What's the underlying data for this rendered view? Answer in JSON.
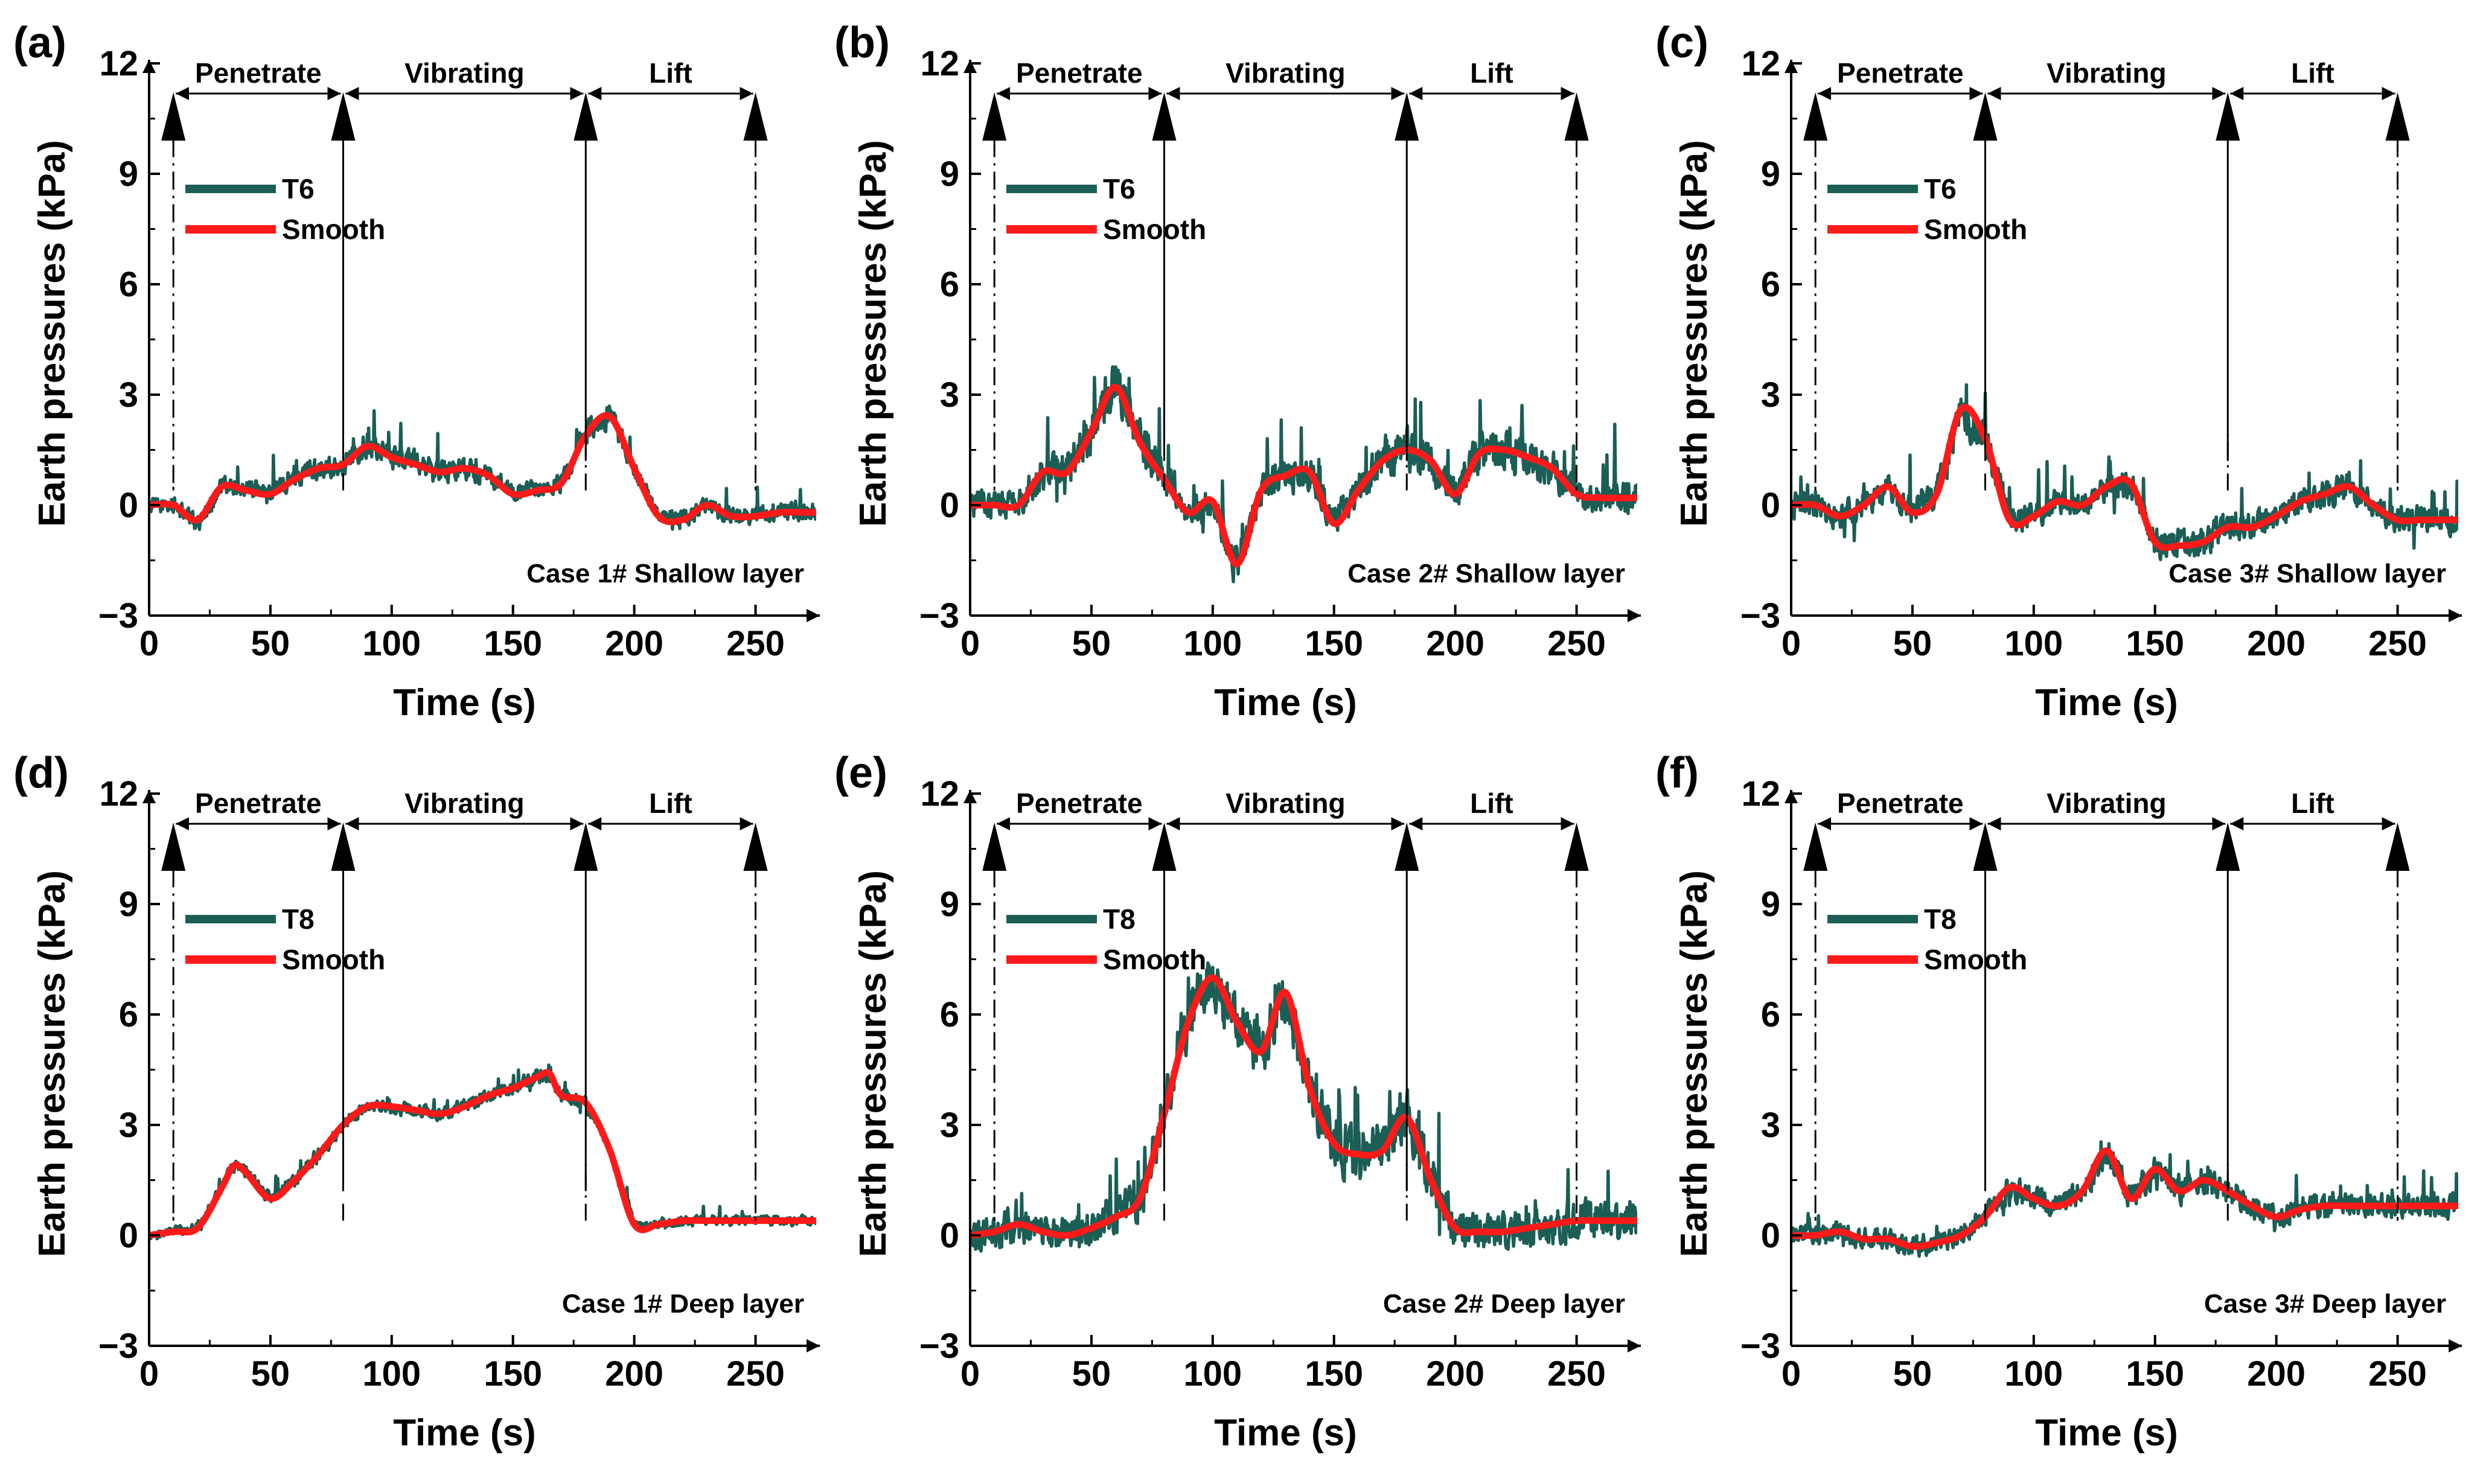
{
  "figure": {
    "colors": {
      "raw": "#1b5e55",
      "smooth": "#ff1a1a",
      "axis": "#000000"
    }
  },
  "chart_data": [
    {
      "panel": "(a)",
      "type": "line",
      "xlabel": "Time (s)",
      "ylabel": "Earth pressures (kPa)",
      "xlim": [
        0,
        275
      ],
      "ylim": [
        -3,
        12
      ],
      "xticks": [
        "0",
        "50",
        "100",
        "150",
        "200",
        "250"
      ],
      "yticks": [
        "−3",
        "0",
        "3",
        "6",
        "9",
        "12"
      ],
      "phases": [
        "Penetrate",
        "Vibrating",
        "Lift"
      ],
      "phase_boundaries": [
        10,
        80,
        180,
        250
      ],
      "annotation": "Case 1# Shallow layer",
      "series": [
        {
          "name": "T6",
          "role": "raw",
          "noise": 0.55,
          "x": [
            0,
            10,
            20,
            30,
            40,
            50,
            60,
            70,
            80,
            90,
            100,
            110,
            120,
            130,
            140,
            150,
            160,
            170,
            180,
            190,
            200,
            210,
            220,
            230,
            240,
            250,
            260,
            275
          ],
          "values": [
            0,
            0,
            -0.5,
            0.5,
            0.5,
            0.3,
            0.8,
            1.0,
            1.1,
            1.7,
            1.3,
            1.2,
            0.9,
            1.0,
            0.8,
            0.3,
            0.4,
            0.6,
            2.0,
            2.4,
            1.0,
            -0.3,
            -0.4,
            0.0,
            -0.3,
            -0.3,
            -0.2,
            -0.2
          ]
        },
        {
          "name": "Smooth",
          "role": "smooth",
          "noise": 0,
          "x": [
            0,
            10,
            20,
            30,
            40,
            50,
            60,
            70,
            80,
            90,
            100,
            110,
            120,
            130,
            140,
            150,
            160,
            170,
            180,
            190,
            200,
            210,
            220,
            230,
            240,
            250,
            260,
            275
          ],
          "values": [
            0,
            0,
            -0.4,
            0.5,
            0.4,
            0.3,
            0.7,
            1.0,
            1.1,
            1.6,
            1.3,
            1.1,
            0.9,
            1.0,
            0.8,
            0.3,
            0.4,
            0.6,
            1.9,
            2.4,
            1.0,
            -0.3,
            -0.4,
            0.0,
            -0.3,
            -0.3,
            -0.2,
            -0.2
          ]
        }
      ]
    },
    {
      "panel": "(b)",
      "type": "line",
      "xlabel": "Time (s)",
      "ylabel": "Earth pressures (kPa)",
      "xlim": [
        0,
        275
      ],
      "ylim": [
        -3,
        12
      ],
      "xticks": [
        "0",
        "50",
        "100",
        "150",
        "200",
        "250"
      ],
      "yticks": [
        "−3",
        "0",
        "3",
        "6",
        "9",
        "12"
      ],
      "phases": [
        "Penetrate",
        "Vibrating",
        "Lift"
      ],
      "phase_boundaries": [
        10,
        80,
        180,
        250
      ],
      "annotation": "Case 2# Shallow layer",
      "series": [
        {
          "name": "T6",
          "role": "raw",
          "noise": 1.0,
          "x": [
            0,
            10,
            20,
            30,
            40,
            50,
            60,
            70,
            80,
            90,
            100,
            110,
            120,
            130,
            140,
            150,
            160,
            170,
            180,
            190,
            200,
            210,
            220,
            230,
            240,
            250,
            260,
            275
          ],
          "values": [
            0,
            0,
            0,
            0.9,
            1.0,
            2.0,
            3.4,
            1.7,
            0.8,
            -0.2,
            0.1,
            -1.7,
            0.4,
            0.8,
            0.9,
            -0.5,
            0.4,
            1.2,
            1.5,
            1.2,
            0.3,
            1.4,
            1.6,
            1.3,
            1.0,
            0.3,
            0.2,
            0.2
          ]
        },
        {
          "name": "Smooth",
          "role": "smooth",
          "noise": 0,
          "x": [
            0,
            10,
            20,
            30,
            40,
            50,
            60,
            70,
            80,
            90,
            100,
            110,
            120,
            130,
            140,
            150,
            160,
            170,
            180,
            190,
            200,
            210,
            220,
            230,
            240,
            250,
            260,
            275
          ],
          "values": [
            0,
            0,
            0,
            0.9,
            0.9,
            2.0,
            3.2,
            1.7,
            0.7,
            -0.2,
            0.1,
            -1.6,
            0.4,
            0.8,
            0.9,
            -0.5,
            0.4,
            1.2,
            1.5,
            1.2,
            0.3,
            1.4,
            1.5,
            1.3,
            1.0,
            0.3,
            0.2,
            0.2
          ]
        }
      ]
    },
    {
      "panel": "(c)",
      "type": "line",
      "xlabel": "Time (s)",
      "ylabel": "Earth pressures (kPa)",
      "xlim": [
        0,
        275
      ],
      "ylim": [
        -3,
        12
      ],
      "xticks": [
        "0",
        "50",
        "100",
        "150",
        "200",
        "250"
      ],
      "yticks": [
        "−3",
        "0",
        "3",
        "6",
        "9",
        "12"
      ],
      "phases": [
        "Penetrate",
        "Vibrating",
        "Lift"
      ],
      "phase_boundaries": [
        10,
        80,
        180,
        250
      ],
      "annotation": "Case 3# Shallow layer",
      "series": [
        {
          "name": "T6",
          "role": "raw",
          "noise": 0.85,
          "x": [
            0,
            10,
            20,
            30,
            40,
            50,
            60,
            70,
            80,
            90,
            100,
            110,
            120,
            130,
            140,
            150,
            160,
            170,
            180,
            190,
            200,
            210,
            220,
            230,
            240,
            250,
            260,
            275
          ],
          "values": [
            0,
            0,
            -0.3,
            0.0,
            0.5,
            -0.2,
            0.3,
            2.5,
            1.8,
            -0.4,
            -0.3,
            0.1,
            0.0,
            0.5,
            0.6,
            -1.0,
            -1.1,
            -1.0,
            -0.6,
            -0.6,
            -0.3,
            0.1,
            0.3,
            0.5,
            0.0,
            -0.4,
            -0.4,
            -0.4
          ]
        },
        {
          "name": "Smooth",
          "role": "smooth",
          "noise": 0,
          "x": [
            0,
            10,
            20,
            30,
            40,
            50,
            60,
            70,
            80,
            90,
            100,
            110,
            120,
            130,
            140,
            150,
            160,
            170,
            180,
            190,
            200,
            210,
            220,
            230,
            240,
            250,
            260,
            275
          ],
          "values": [
            0,
            0,
            -0.3,
            0.0,
            0.5,
            -0.2,
            0.3,
            2.6,
            1.8,
            -0.4,
            -0.3,
            0.1,
            0.0,
            0.5,
            0.6,
            -1.0,
            -1.1,
            -1.0,
            -0.6,
            -0.6,
            -0.3,
            0.1,
            0.3,
            0.5,
            0.0,
            -0.4,
            -0.4,
            -0.4
          ]
        }
      ]
    },
    {
      "panel": "(d)",
      "type": "line",
      "xlabel": "Time (s)",
      "ylabel": "Earth pressures (kPa)",
      "xlim": [
        0,
        275
      ],
      "ylim": [
        -3,
        12
      ],
      "xticks": [
        "0",
        "50",
        "100",
        "150",
        "200",
        "250"
      ],
      "yticks": [
        "−3",
        "0",
        "3",
        "6",
        "9",
        "12"
      ],
      "phases": [
        "Penetrate",
        "Vibrating",
        "Lift"
      ],
      "phase_boundaries": [
        10,
        80,
        180,
        250
      ],
      "annotation": "Case 1# Deep layer",
      "series": [
        {
          "name": "T8",
          "role": "raw",
          "noise": 0.3,
          "x": [
            0,
            10,
            20,
            30,
            35,
            40,
            50,
            60,
            70,
            80,
            90,
            100,
            110,
            120,
            130,
            140,
            150,
            160,
            165,
            170,
            180,
            190,
            200,
            210,
            220,
            230,
            240,
            250,
            260,
            275
          ],
          "values": [
            0,
            0.1,
            0.2,
            1.3,
            1.9,
            1.7,
            1.0,
            1.5,
            2.2,
            3.0,
            3.5,
            3.5,
            3.4,
            3.3,
            3.5,
            3.8,
            4.0,
            4.3,
            4.3,
            3.8,
            3.6,
            2.3,
            0.3,
            0.3,
            0.4,
            0.4,
            0.4,
            0.4,
            0.4,
            0.4
          ]
        },
        {
          "name": "Smooth",
          "role": "smooth",
          "noise": 0,
          "x": [
            0,
            10,
            20,
            30,
            35,
            40,
            50,
            60,
            70,
            80,
            90,
            100,
            110,
            120,
            130,
            140,
            150,
            160,
            165,
            170,
            180,
            190,
            200,
            210,
            220,
            230,
            240,
            250,
            260,
            275
          ],
          "values": [
            0,
            0.1,
            0.2,
            1.3,
            1.9,
            1.7,
            1.0,
            1.5,
            2.2,
            3.0,
            3.5,
            3.5,
            3.4,
            3.3,
            3.5,
            3.8,
            4.0,
            4.3,
            4.4,
            3.8,
            3.6,
            2.3,
            0.3,
            0.3,
            0.4,
            0.4,
            0.4,
            0.4,
            0.4,
            0.4
          ]
        }
      ]
    },
    {
      "panel": "(e)",
      "type": "line",
      "xlabel": "Time (s)",
      "ylabel": "Earth pressures (kPa)",
      "xlim": [
        0,
        275
      ],
      "ylim": [
        -3,
        12
      ],
      "xticks": [
        "0",
        "50",
        "100",
        "150",
        "200",
        "250"
      ],
      "yticks": [
        "−3",
        "0",
        "3",
        "6",
        "9",
        "12"
      ],
      "phases": [
        "Penetrate",
        "Vibrating",
        "Lift"
      ],
      "phase_boundaries": [
        10,
        80,
        180,
        250
      ],
      "annotation": "Case 2# Deep layer",
      "series": [
        {
          "name": "T8",
          "role": "raw",
          "noise": 1.2,
          "x": [
            0,
            10,
            20,
            30,
            40,
            50,
            60,
            70,
            80,
            90,
            100,
            110,
            120,
            130,
            140,
            150,
            160,
            170,
            180,
            190,
            200,
            210,
            220,
            230,
            240,
            250,
            260,
            275
          ],
          "values": [
            0,
            0.1,
            0.3,
            0.1,
            0.0,
            0.2,
            0.5,
            1.0,
            3.5,
            6.0,
            7.0,
            5.8,
            5.0,
            6.7,
            4.0,
            2.5,
            2.2,
            2.3,
            3.2,
            1.5,
            0.2,
            0.1,
            0.1,
            0.2,
            0.3,
            0.4,
            0.4,
            0.4
          ]
        },
        {
          "name": "Smooth",
          "role": "smooth",
          "noise": 0,
          "x": [
            0,
            10,
            20,
            30,
            40,
            50,
            60,
            70,
            80,
            90,
            100,
            110,
            120,
            130,
            140,
            150,
            160,
            170,
            180,
            190,
            200,
            210,
            220,
            230,
            240,
            250,
            260,
            275
          ],
          "values": [
            0,
            0.1,
            0.3,
            0.1,
            0.0,
            0.2,
            0.5,
            1.0,
            3.3,
            5.8,
            7.0,
            5.8,
            5.0,
            6.6,
            4.0,
            2.5,
            2.2,
            2.3,
            3.2,
            1.5,
            0.2,
            0.1,
            0.1,
            0.2,
            0.3,
            0.4,
            0.4,
            0.4
          ]
        }
      ]
    },
    {
      "panel": "(f)",
      "type": "line",
      "xlabel": "Time (s)",
      "ylabel": "Earth pressures (kPa)",
      "xlim": [
        0,
        275
      ],
      "ylim": [
        -3,
        12
      ],
      "xticks": [
        "0",
        "50",
        "100",
        "150",
        "200",
        "250"
      ],
      "yticks": [
        "−3",
        "0",
        "3",
        "6",
        "9",
        "12"
      ],
      "phases": [
        "Penetrate",
        "Vibrating",
        "Lift"
      ],
      "phase_boundaries": [
        10,
        80,
        180,
        250
      ],
      "annotation": "Case 3# Deep layer",
      "series": [
        {
          "name": "T8",
          "role": "raw",
          "noise": 0.65,
          "x": [
            0,
            10,
            20,
            30,
            40,
            50,
            60,
            70,
            80,
            90,
            100,
            110,
            120,
            130,
            140,
            150,
            160,
            170,
            180,
            190,
            200,
            210,
            220,
            230,
            240,
            250,
            260,
            275
          ],
          "values": [
            0,
            0,
            0.1,
            -0.1,
            -0.1,
            -0.3,
            -0.2,
            0.0,
            0.5,
            1.3,
            1.0,
            0.8,
            1.2,
            2.3,
            1.0,
            1.8,
            1.2,
            1.5,
            1.2,
            0.8,
            0.5,
            0.7,
            0.8,
            0.8,
            0.8,
            0.8,
            0.8,
            0.8
          ]
        },
        {
          "name": "Smooth",
          "role": "smooth",
          "noise": 0,
          "x": [
            0,
            10,
            20,
            30,
            40,
            50,
            60,
            70,
            80,
            90,
            100,
            110,
            120,
            130,
            140,
            150,
            160,
            170,
            180,
            190,
            200,
            210,
            220,
            230,
            240,
            250,
            260,
            275
          ],
          "values": [
            0,
            0,
            0.1,
            -0.1,
            -0.1,
            -0.3,
            -0.2,
            0.0,
            0.5,
            1.3,
            1.0,
            0.8,
            1.2,
            2.3,
            1.0,
            1.8,
            1.2,
            1.5,
            1.2,
            0.8,
            0.5,
            0.7,
            0.8,
            0.8,
            0.8,
            0.8,
            0.8,
            0.8
          ]
        }
      ]
    }
  ]
}
